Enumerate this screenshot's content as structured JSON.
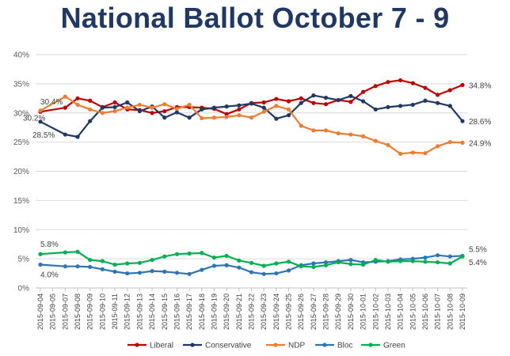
{
  "chart_data": {
    "type": "line",
    "title": "National Ballot October 7 - 9",
    "title_color": "#1f3864",
    "xlabel": "",
    "ylabel": "",
    "ylim": [
      0,
      40
    ],
    "y_ticks": [
      "0%",
      "5%",
      "10%",
      "15%",
      "20%",
      "25%",
      "30%",
      "35%",
      "40%"
    ],
    "y_tick_values": [
      0,
      5,
      10,
      15,
      20,
      25,
      30,
      35,
      40
    ],
    "grid": true,
    "legend_position": "bottom",
    "categories": [
      "2015-09-04",
      "2015-09-05",
      "2015-09-07",
      "2015-09-08",
      "2015-09-09",
      "2015-09-10",
      "2015-09-11",
      "2015-09-12",
      "2015-09-13",
      "2015-09-14",
      "2015-09-15",
      "2015-09-16",
      "2015-09-17",
      "2015-09-18",
      "2015-09-19",
      "2015-09-20",
      "2015-09-21",
      "2015-09-22",
      "2015-09-23",
      "2015-09-24",
      "2015-09-25",
      "2015-09-26",
      "2015-09-27",
      "2015-09-28",
      "2015-09-29",
      "2015-09-30",
      "2015-10-01",
      "2015-10-02",
      "2015-10-03",
      "2015-10-04",
      "2015-10-05",
      "2015-10-06",
      "2015-10-07",
      "2015-10-08",
      "2015-10-09"
    ],
    "series": [
      {
        "name": "Liberal",
        "color": "#c00000",
        "marker": true,
        "points": [
          [
            "2015-09-04",
            30.2
          ],
          [
            "2015-09-07",
            30.9
          ],
          [
            "2015-09-08",
            32.5
          ],
          [
            "2015-09-09",
            32.1
          ],
          [
            "2015-09-10",
            31.0
          ],
          [
            "2015-09-11",
            31.8
          ],
          [
            "2015-09-12",
            30.6
          ],
          [
            "2015-09-13",
            30.5
          ],
          [
            "2015-09-14",
            30.0
          ],
          [
            "2015-09-15",
            30.3
          ],
          [
            "2015-09-16",
            31.0
          ],
          [
            "2015-09-17",
            31.0
          ],
          [
            "2015-09-18",
            30.9
          ],
          [
            "2015-09-19",
            30.7
          ],
          [
            "2015-09-20",
            29.8
          ],
          [
            "2015-09-21",
            30.6
          ],
          [
            "2015-09-22",
            31.7
          ],
          [
            "2015-09-23",
            31.8
          ],
          [
            "2015-09-24",
            32.4
          ],
          [
            "2015-09-25",
            32.0
          ],
          [
            "2015-09-26",
            32.5
          ],
          [
            "2015-09-27",
            31.7
          ],
          [
            "2015-09-28",
            31.5
          ],
          [
            "2015-09-29",
            32.2
          ],
          [
            "2015-09-30",
            31.9
          ],
          [
            "2015-10-01",
            33.6
          ],
          [
            "2015-10-02",
            34.6
          ],
          [
            "2015-10-03",
            35.3
          ],
          [
            "2015-10-04",
            35.6
          ],
          [
            "2015-10-05",
            35.1
          ],
          [
            "2015-10-06",
            34.3
          ],
          [
            "2015-10-07",
            33.1
          ],
          [
            "2015-10-08",
            33.9
          ],
          [
            "2015-10-09",
            34.8
          ]
        ]
      },
      {
        "name": "Conservative",
        "color": "#1f3864",
        "marker": true,
        "points": [
          [
            "2015-09-04",
            28.5
          ],
          [
            "2015-09-07",
            26.3
          ],
          [
            "2015-09-08",
            25.9
          ],
          [
            "2015-09-09",
            28.6
          ],
          [
            "2015-09-10",
            30.9
          ],
          [
            "2015-09-11",
            31.0
          ],
          [
            "2015-09-12",
            31.8
          ],
          [
            "2015-09-13",
            30.3
          ],
          [
            "2015-09-14",
            31.1
          ],
          [
            "2015-09-15",
            29.2
          ],
          [
            "2015-09-16",
            30.1
          ],
          [
            "2015-09-17",
            29.2
          ],
          [
            "2015-09-18",
            30.6
          ],
          [
            "2015-09-19",
            30.9
          ],
          [
            "2015-09-20",
            31.1
          ],
          [
            "2015-09-21",
            31.3
          ],
          [
            "2015-09-22",
            31.6
          ],
          [
            "2015-09-23",
            30.9
          ],
          [
            "2015-09-24",
            29.0
          ],
          [
            "2015-09-25",
            29.6
          ],
          [
            "2015-09-26",
            31.7
          ],
          [
            "2015-09-27",
            33.0
          ],
          [
            "2015-09-28",
            32.6
          ],
          [
            "2015-09-29",
            32.2
          ],
          [
            "2015-09-30",
            32.9
          ],
          [
            "2015-10-01",
            32.0
          ],
          [
            "2015-10-02",
            30.6
          ],
          [
            "2015-10-03",
            31.0
          ],
          [
            "2015-10-04",
            31.2
          ],
          [
            "2015-10-05",
            31.4
          ],
          [
            "2015-10-06",
            32.1
          ],
          [
            "2015-10-07",
            31.7
          ],
          [
            "2015-10-08",
            31.2
          ],
          [
            "2015-10-09",
            28.6
          ]
        ]
      },
      {
        "name": "NDP",
        "color": "#ed7d31",
        "marker": true,
        "points": [
          [
            "2015-09-04",
            30.4
          ],
          [
            "2015-09-07",
            32.8
          ],
          [
            "2015-09-08",
            31.4
          ],
          [
            "2015-09-09",
            30.6
          ],
          [
            "2015-09-10",
            30.0
          ],
          [
            "2015-09-11",
            30.3
          ],
          [
            "2015-09-12",
            30.9
          ],
          [
            "2015-09-13",
            31.4
          ],
          [
            "2015-09-14",
            30.9
          ],
          [
            "2015-09-15",
            31.5
          ],
          [
            "2015-09-16",
            30.7
          ],
          [
            "2015-09-17",
            31.4
          ],
          [
            "2015-09-18",
            29.1
          ],
          [
            "2015-09-19",
            29.2
          ],
          [
            "2015-09-20",
            29.3
          ],
          [
            "2015-09-21",
            29.6
          ],
          [
            "2015-09-22",
            29.2
          ],
          [
            "2015-09-23",
            30.2
          ],
          [
            "2015-09-24",
            31.2
          ],
          [
            "2015-09-25",
            30.6
          ],
          [
            "2015-09-26",
            27.8
          ],
          [
            "2015-09-27",
            27.0
          ],
          [
            "2015-09-28",
            27.0
          ],
          [
            "2015-09-29",
            26.5
          ],
          [
            "2015-09-30",
            26.3
          ],
          [
            "2015-10-01",
            26.0
          ],
          [
            "2015-10-02",
            25.2
          ],
          [
            "2015-10-03",
            24.5
          ],
          [
            "2015-10-04",
            23.0
          ],
          [
            "2015-10-05",
            23.2
          ],
          [
            "2015-10-06",
            23.1
          ],
          [
            "2015-10-07",
            24.3
          ],
          [
            "2015-10-08",
            25.0
          ],
          [
            "2015-10-09",
            24.9
          ]
        ]
      },
      {
        "name": "Bloc",
        "color": "#2e75b6",
        "marker": true,
        "points": [
          [
            "2015-09-04",
            4.0
          ],
          [
            "2015-09-07",
            3.7
          ],
          [
            "2015-09-08",
            3.7
          ],
          [
            "2015-09-09",
            3.6
          ],
          [
            "2015-09-10",
            3.2
          ],
          [
            "2015-09-11",
            2.8
          ],
          [
            "2015-09-12",
            2.5
          ],
          [
            "2015-09-13",
            2.6
          ],
          [
            "2015-09-14",
            2.9
          ],
          [
            "2015-09-15",
            2.8
          ],
          [
            "2015-09-16",
            2.6
          ],
          [
            "2015-09-17",
            2.4
          ],
          [
            "2015-09-18",
            3.1
          ],
          [
            "2015-09-19",
            3.8
          ],
          [
            "2015-09-20",
            3.9
          ],
          [
            "2015-09-21",
            3.5
          ],
          [
            "2015-09-22",
            2.7
          ],
          [
            "2015-09-23",
            2.4
          ],
          [
            "2015-09-24",
            2.5
          ],
          [
            "2015-09-25",
            3.0
          ],
          [
            "2015-09-26",
            3.9
          ],
          [
            "2015-09-27",
            4.2
          ],
          [
            "2015-09-28",
            4.4
          ],
          [
            "2015-09-29",
            4.6
          ],
          [
            "2015-09-30",
            4.8
          ],
          [
            "2015-10-01",
            4.4
          ],
          [
            "2015-10-02",
            4.5
          ],
          [
            "2015-10-03",
            4.6
          ],
          [
            "2015-10-04",
            4.9
          ],
          [
            "2015-10-05",
            5.0
          ],
          [
            "2015-10-06",
            5.2
          ],
          [
            "2015-10-07",
            5.6
          ],
          [
            "2015-10-08",
            5.4
          ],
          [
            "2015-10-09",
            5.5
          ]
        ]
      },
      {
        "name": "Green",
        "color": "#00b050",
        "marker": true,
        "points": [
          [
            "2015-09-04",
            5.8
          ],
          [
            "2015-09-07",
            6.1
          ],
          [
            "2015-09-08",
            6.2
          ],
          [
            "2015-09-09",
            4.8
          ],
          [
            "2015-09-10",
            4.6
          ],
          [
            "2015-09-11",
            4.0
          ],
          [
            "2015-09-12",
            4.2
          ],
          [
            "2015-09-13",
            4.3
          ],
          [
            "2015-09-14",
            4.8
          ],
          [
            "2015-09-15",
            5.4
          ],
          [
            "2015-09-16",
            5.8
          ],
          [
            "2015-09-17",
            5.9
          ],
          [
            "2015-09-18",
            6.0
          ],
          [
            "2015-09-19",
            5.2
          ],
          [
            "2015-09-20",
            5.5
          ],
          [
            "2015-09-21",
            4.7
          ],
          [
            "2015-09-22",
            4.3
          ],
          [
            "2015-09-23",
            3.8
          ],
          [
            "2015-09-24",
            4.2
          ],
          [
            "2015-09-25",
            4.5
          ],
          [
            "2015-09-26",
            3.7
          ],
          [
            "2015-09-27",
            3.6
          ],
          [
            "2015-09-28",
            3.9
          ],
          [
            "2015-09-29",
            4.4
          ],
          [
            "2015-09-30",
            4.1
          ],
          [
            "2015-10-01",
            4.0
          ],
          [
            "2015-10-02",
            4.8
          ],
          [
            "2015-10-03",
            4.5
          ],
          [
            "2015-10-04",
            4.6
          ],
          [
            "2015-10-05",
            4.6
          ],
          [
            "2015-10-06",
            4.5
          ],
          [
            "2015-10-07",
            4.4
          ],
          [
            "2015-10-08",
            4.2
          ],
          [
            "2015-10-09",
            5.4
          ]
        ]
      }
    ],
    "annotations": [
      {
        "text": "30.4%",
        "series": "NDP",
        "side": "start"
      },
      {
        "text": "30.2%",
        "series": "Liberal",
        "side": "start"
      },
      {
        "text": "28.5%",
        "series": "Conservative",
        "side": "start"
      },
      {
        "text": "5.8%",
        "series": "Green",
        "side": "start"
      },
      {
        "text": "4.0%",
        "series": "Bloc",
        "side": "start"
      },
      {
        "text": "34.8%",
        "series": "Liberal",
        "side": "end"
      },
      {
        "text": "28.6%",
        "series": "Conservative",
        "side": "end"
      },
      {
        "text": "24.9%",
        "series": "NDP",
        "side": "end"
      },
      {
        "text": "5.5%",
        "series": "Bloc",
        "side": "end"
      },
      {
        "text": "5.4%",
        "series": "Green",
        "side": "end"
      }
    ]
  }
}
